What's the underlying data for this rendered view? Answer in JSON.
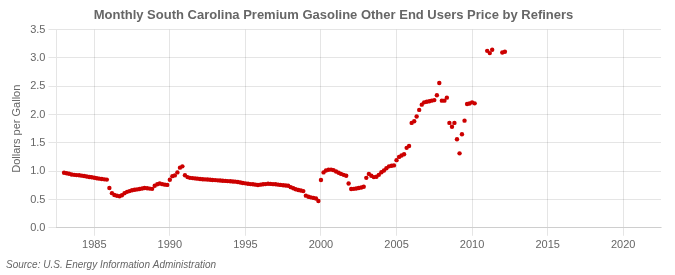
{
  "chart_data": {
    "type": "scatter",
    "title": "Monthly South Carolina Premium Gasoline Other End Users Price by Refiners",
    "y_label": "Dollars per Gallon",
    "annotation": "Source: U.S. Energy Information Administration",
    "color": "#cc0000",
    "marker": "circle",
    "grid": true,
    "xlim": [
      1982.5,
      2022.5
    ],
    "ylim": [
      0.0,
      3.5
    ],
    "xticks": [
      1985,
      1990,
      1995,
      2000,
      2005,
      2010,
      2015,
      2020
    ],
    "yticks": [
      {
        "value": 0.0,
        "label": "0.0"
      },
      0.5,
      {
        "value": 1.0,
        "label": "1.0"
      },
      1.5,
      {
        "value": 2.0,
        "label": "2.0"
      },
      2.5,
      {
        "value": 3.0,
        "label": "3.0"
      },
      3.5
    ],
    "x": [
      1983.0,
      1983.17,
      1983.33,
      1983.5,
      1983.67,
      1983.83,
      1984.0,
      1984.17,
      1984.33,
      1984.5,
      1984.67,
      1984.83,
      1985.0,
      1985.17,
      1985.33,
      1985.5,
      1985.67,
      1985.83,
      1986.0,
      1986.17,
      1986.33,
      1986.5,
      1986.67,
      1986.83,
      1987.0,
      1987.17,
      1987.33,
      1987.5,
      1987.67,
      1987.83,
      1988.0,
      1988.17,
      1988.33,
      1988.5,
      1988.67,
      1988.83,
      1989.0,
      1989.17,
      1989.33,
      1989.5,
      1989.67,
      1989.83,
      1990.0,
      1990.17,
      1990.33,
      1990.5,
      1990.67,
      1990.83,
      1991.0,
      1991.17,
      1991.33,
      1991.5,
      1991.67,
      1991.83,
      1992.0,
      1992.17,
      1992.33,
      1992.5,
      1992.67,
      1992.83,
      1993.0,
      1993.17,
      1993.33,
      1993.5,
      1993.67,
      1993.83,
      1994.0,
      1994.17,
      1994.33,
      1994.5,
      1994.67,
      1994.83,
      1995.0,
      1995.17,
      1995.33,
      1995.5,
      1995.67,
      1995.83,
      1996.0,
      1996.17,
      1996.33,
      1996.5,
      1996.67,
      1996.83,
      1997.0,
      1997.17,
      1997.33,
      1997.5,
      1997.67,
      1997.83,
      1998.0,
      1998.17,
      1998.33,
      1998.5,
      1998.67,
      1998.83,
      1999.0,
      1999.17,
      1999.33,
      1999.5,
      1999.67,
      1999.83,
      2000.0,
      2000.17,
      2000.33,
      2000.5,
      2000.67,
      2000.83,
      2001.0,
      2001.17,
      2001.33,
      2001.5,
      2001.67,
      2001.83,
      2002.0,
      2002.17,
      2002.33,
      2002.5,
      2002.67,
      2002.83,
      2003.0,
      2003.17,
      2003.33,
      2003.5,
      2003.67,
      2003.83,
      2004.0,
      2004.17,
      2004.33,
      2004.5,
      2004.67,
      2004.83,
      2005.0,
      2005.17,
      2005.33,
      2005.5,
      2005.67,
      2005.83,
      2006.0,
      2006.17,
      2006.33,
      2006.5,
      2006.67,
      2006.83,
      2007.0,
      2007.17,
      2007.33,
      2007.5,
      2007.67,
      2007.83,
      2008.0,
      2008.17,
      2008.33,
      2008.5,
      2008.67,
      2008.83,
      2009.0,
      2009.17,
      2009.33,
      2009.5,
      2009.67,
      2009.83,
      2010.0,
      2010.17,
      2011.0,
      2011.17,
      2011.33,
      2012.0,
      2012.17
    ],
    "values": [
      0.972,
      0.964,
      0.955,
      0.942,
      0.935,
      0.931,
      0.928,
      0.921,
      0.915,
      0.905,
      0.898,
      0.892,
      0.885,
      0.876,
      0.868,
      0.862,
      0.856,
      0.851,
      0.702,
      0.612,
      0.578,
      0.565,
      0.558,
      0.575,
      0.612,
      0.635,
      0.648,
      0.662,
      0.671,
      0.678,
      0.685,
      0.695,
      0.702,
      0.698,
      0.692,
      0.688,
      0.742,
      0.768,
      0.782,
      0.771,
      0.762,
      0.758,
      0.848,
      0.912,
      0.925,
      0.978,
      1.062,
      1.085,
      0.928,
      0.895,
      0.882,
      0.878,
      0.872,
      0.868,
      0.862,
      0.858,
      0.855,
      0.852,
      0.848,
      0.845,
      0.842,
      0.838,
      0.835,
      0.832,
      0.828,
      0.825,
      0.822,
      0.818,
      0.815,
      0.808,
      0.8,
      0.792,
      0.785,
      0.778,
      0.772,
      0.768,
      0.762,
      0.757,
      0.762,
      0.768,
      0.772,
      0.778,
      0.775,
      0.771,
      0.768,
      0.762,
      0.758,
      0.752,
      0.748,
      0.742,
      0.718,
      0.698,
      0.682,
      0.668,
      0.658,
      0.648,
      0.568,
      0.548,
      0.538,
      0.528,
      0.518,
      0.472,
      0.845,
      0.978,
      1.012,
      1.025,
      1.028,
      1.018,
      0.995,
      0.972,
      0.952,
      0.935,
      0.918,
      0.782,
      0.685,
      0.688,
      0.695,
      0.702,
      0.712,
      0.725,
      0.882,
      0.952,
      0.918,
      0.895,
      0.902,
      0.935,
      0.982,
      1.012,
      1.052,
      1.085,
      1.095,
      1.102,
      1.195,
      1.252,
      1.278,
      1.298,
      1.412,
      1.445,
      1.852,
      1.882,
      1.965,
      2.082,
      2.175,
      2.215,
      2.225,
      2.235,
      2.245,
      2.255,
      2.342,
      2.558,
      2.245,
      2.245,
      2.298,
      1.852,
      1.785,
      1.852,
      1.565,
      1.315,
      1.652,
      1.892,
      2.185,
      2.195,
      2.215,
      2.198,
      3.125,
      3.085,
      3.145,
      3.095,
      3.108
    ]
  }
}
